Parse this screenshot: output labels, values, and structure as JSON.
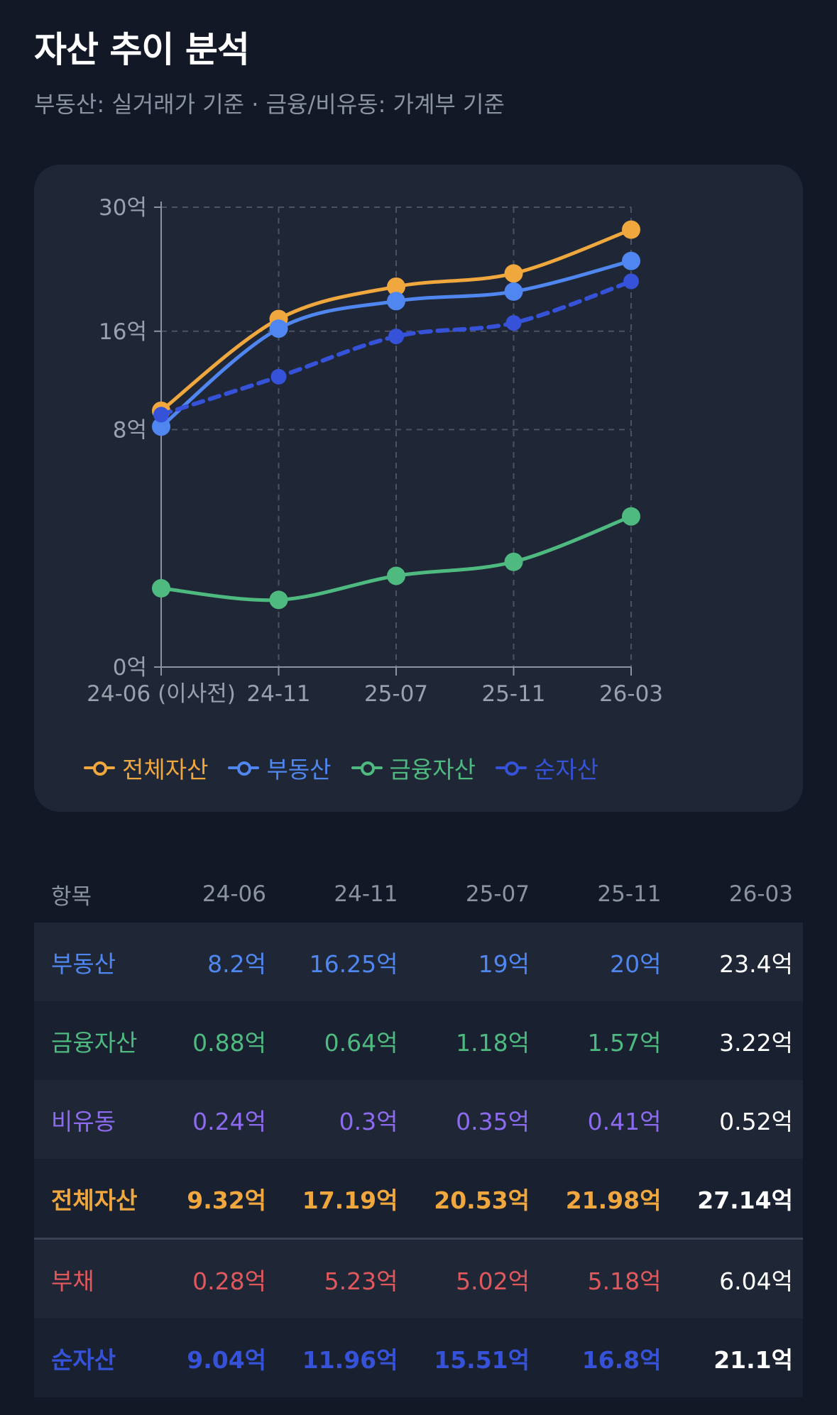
{
  "header": {
    "title": "자산 추이 분석",
    "subtitle": "부동산: 실거래가 기준 · 금융/비유동: 가계부 기준"
  },
  "colors": {
    "total": "#f0a73e",
    "real_estate": "#4f86f0",
    "financial": "#4fba80",
    "non_liquid": "#8d6bf0",
    "liability": "#e0585c",
    "net": "#3552d8"
  },
  "chart_data": {
    "type": "line",
    "categories": [
      "24-06 (이사전)",
      "24-11",
      "25-07",
      "25-11",
      "26-03"
    ],
    "y_ticks": [
      "30억",
      "16억",
      "8억",
      "0억"
    ],
    "y_tick_values": [
      30,
      16,
      8,
      0
    ],
    "ylim": [
      0,
      30
    ],
    "y_scale": "sqrt",
    "grid": true,
    "legend_position": "bottom",
    "series": [
      {
        "name": "전체자산",
        "key": "total",
        "color": "#f0a73e",
        "dashed": false,
        "values": [
          9.32,
          17.19,
          20.53,
          21.98,
          27.14
        ]
      },
      {
        "name": "부동산",
        "key": "real_estate",
        "color": "#4f86f0",
        "dashed": false,
        "values": [
          8.2,
          16.25,
          19,
          20,
          23.4
        ]
      },
      {
        "name": "금융자산",
        "key": "financial",
        "color": "#4fba80",
        "dashed": false,
        "values": [
          0.88,
          0.64,
          1.18,
          1.57,
          3.22
        ]
      },
      {
        "name": "순자산",
        "key": "net",
        "color": "#3552d8",
        "dashed": true,
        "values": [
          9.04,
          11.96,
          15.51,
          16.8,
          21.1
        ]
      }
    ]
  },
  "table": {
    "headers": [
      "항목",
      "24-06",
      "24-11",
      "25-07",
      "25-11",
      "26-03"
    ],
    "rows": [
      {
        "label": "부동산",
        "color": "#4f86f0",
        "bold": false,
        "divider": false,
        "cells": [
          "8.2억",
          "16.25억",
          "19억",
          "20억",
          "23.4억"
        ]
      },
      {
        "label": "금융자산",
        "color": "#4fba80",
        "bold": false,
        "divider": false,
        "cells": [
          "0.88억",
          "0.64억",
          "1.18억",
          "1.57억",
          "3.22억"
        ]
      },
      {
        "label": "비유동",
        "color": "#8d6bf0",
        "bold": false,
        "divider": false,
        "cells": [
          "0.24억",
          "0.3억",
          "0.35억",
          "0.41억",
          "0.52억"
        ]
      },
      {
        "label": "전체자산",
        "color": "#f0a73e",
        "bold": true,
        "divider": false,
        "cells": [
          "9.32억",
          "17.19억",
          "20.53억",
          "21.98억",
          "27.14억"
        ]
      },
      {
        "label": "부채",
        "color": "#e0585c",
        "bold": false,
        "divider": true,
        "cells": [
          "0.28억",
          "5.23억",
          "5.02억",
          "5.18억",
          "6.04억"
        ]
      },
      {
        "label": "순자산",
        "color": "#3552d8",
        "bold": true,
        "divider": false,
        "cells": [
          "9.04억",
          "11.96억",
          "15.51억",
          "16.8억",
          "21.1억"
        ]
      }
    ]
  }
}
